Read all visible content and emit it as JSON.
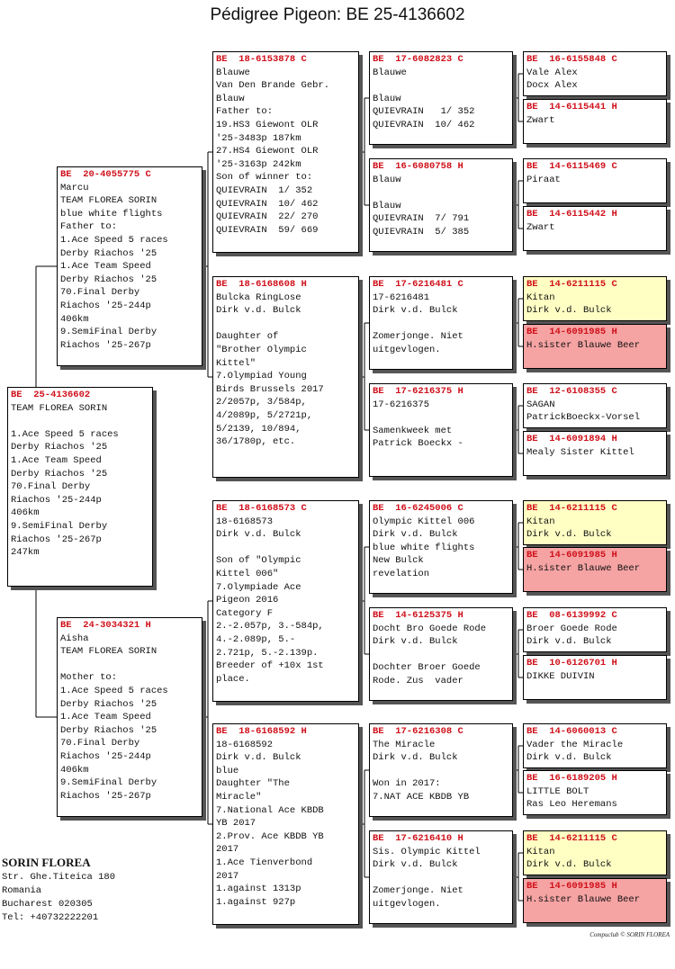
{
  "title": "Pédigree Pigeon: BE  25-4136602",
  "pigeons": [
    {
      "ring": "BE  25-4136602",
      "blocks": [
        [
          "TEAM FLOREA SORIN"
        ],
        [
          "1.Ace Speed 5 races",
          "Derby Riachos '25",
          "1.Ace Team Speed",
          "Derby Riachos '25",
          "70.Final Derby",
          "Riachos '25-244p",
          "406km",
          "9.SemiFinal Derby",
          "Riachos '25-267p",
          "247km"
        ]
      ]
    },
    {
      "ring": "BE  20-4055775 C",
      "blocks": [
        [
          "Marcu",
          "TEAM FLOREA SORIN",
          "blue white flights",
          "Father to:",
          "1.Ace Speed 5 races",
          "Derby Riachos '25",
          "1.Ace Team Speed",
          "Derby Riachos '25",
          "70.Final Derby",
          "Riachos '25-244p",
          "406km",
          "9.SemiFinal Derby",
          "Riachos '25-267p"
        ]
      ]
    },
    {
      "ring": "BE  24-3034321 H",
      "blocks": [
        [
          "Aisha",
          "TEAM FLOREA SORIN"
        ],
        [
          "Mother to:",
          "1.Ace Speed 5 races",
          "Derby Riachos '25",
          "1.Ace Team Speed",
          "Derby Riachos '25",
          "70.Final Derby",
          "Riachos '25-244p",
          "406km",
          "9.SemiFinal Derby",
          "Riachos '25-267p"
        ]
      ]
    },
    {
      "ring": "BE  18-6153878 C",
      "blocks": [
        [
          "Blauwe",
          "Van Den Brande Gebr.",
          "Blauw",
          "Father to:",
          "19.HS3 Giewont OLR",
          "'25-3483p 187km",
          "27.HS4 Giewont OLR",
          "'25-3163p 242km",
          "Son of winner to:",
          "QUIEVRAIN  1/ 352",
          "QUIEVRAIN  10/ 462",
          "QUIEVRAIN  22/ 270",
          "QUIEVRAIN  59/ 669"
        ]
      ]
    },
    {
      "ring": "BE  18-6168608 H",
      "blocks": [
        [
          "Bulcka RingLose",
          "Dirk v.d. Bulck"
        ],
        [
          "Daughter of",
          "\"Brother Olympic",
          "Kittel\"",
          "7.Olympiad Young",
          "Birds Brussels 2017",
          "2/2057p, 3/584p,",
          "4/2089p, 5/2721p,",
          "5/2139, 10/894,",
          "36/1780p, etc."
        ]
      ]
    },
    {
      "ring": "BE  18-6168573 C",
      "blocks": [
        [
          "18-6168573",
          "Dirk v.d. Bulck"
        ],
        [
          "Son of \"Olympic",
          "Kittel 006\"",
          "7.Olympiade Ace",
          "Pigeon 2016",
          "Category F",
          "2.-2.057p, 3.-584p,",
          "4.-2.089p, 5.-",
          "2.721p, 5.-2.139p.",
          "Breeder of +10x 1st",
          "place."
        ]
      ]
    },
    {
      "ring": "BE  18-6168592 H",
      "blocks": [
        [
          "18-6168592",
          "Dirk v.d. Bulck",
          "blue",
          "Daughter \"The",
          "Miracle\"",
          "7.National Ace KBDB",
          "YB 2017",
          "2.Prov. Ace KBDB YB",
          "2017",
          "1.Ace Tienverbond",
          "2017",
          "1.against 1313p",
          "1.against 927p"
        ]
      ]
    },
    {
      "ring": "BE  17-6082823 C",
      "blocks": [
        [
          "Blauwe"
        ],
        [
          "Blauw",
          "QUIEVRAIN   1/ 352",
          "QUIEVRAIN  10/ 462"
        ]
      ]
    },
    {
      "ring": "BE  16-6080758 H",
      "blocks": [
        [
          "Blauw"
        ],
        [
          "Blauw",
          "QUIEVRAIN  7/ 791",
          "QUIEVRAIN  5/ 385"
        ]
      ]
    },
    {
      "ring": "BE  17-6216481 C",
      "blocks": [
        [
          "17-6216481",
          "Dirk v.d. Bulck"
        ],
        [
          "Zomerjonge. Niet",
          "uitgevlogen."
        ]
      ]
    },
    {
      "ring": "BE  17-6216375 H",
      "blocks": [
        [
          "17-6216375"
        ],
        [
          "Samenkweek met",
          "Patrick Boeckx -"
        ]
      ]
    },
    {
      "ring": "BE  16-6245006 C",
      "blocks": [
        [
          "Olympic Kittel 006",
          "Dirk v.d. Bulck",
          "blue white flights",
          "New Bulck",
          "revelation"
        ]
      ]
    },
    {
      "ring": "BE  14-6125375 H",
      "blocks": [
        [
          "Docht Bro Goede Rode",
          "Dirk v.d. Bulck"
        ],
        [
          "Dochter Broer Goede",
          "Rode. Zus  vader"
        ]
      ]
    },
    {
      "ring": "BE  17-6216308 C",
      "blocks": [
        [
          "The Miracle",
          "Dirk v.d. Bulck"
        ],
        [
          "Won in 2017:",
          "7.NAT ACE KBDB YB"
        ]
      ]
    },
    {
      "ring": "BE  17-6216410 H",
      "blocks": [
        [
          "Sis. Olympic Kittel",
          "Dirk v.d. Bulck"
        ],
        [
          "Zomerjonge. Niet",
          "uitgevlogen."
        ]
      ]
    },
    {
      "ring": "BE  16-6155848 C",
      "blocks": [
        [
          "Vale Alex",
          "Docx Alex"
        ]
      ]
    },
    {
      "ring": "BE  14-6115441 H",
      "blocks": [
        [
          "Zwart"
        ]
      ]
    },
    {
      "ring": "BE  14-6115469 C",
      "blocks": [
        [
          "Piraat"
        ]
      ]
    },
    {
      "ring": "BE  14-6115442 H",
      "blocks": [
        [
          "Zwart"
        ]
      ]
    },
    {
      "ring": "BE  14-6211115 C",
      "blocks": [
        [
          "Kitan",
          "Dirk v.d. Bulck"
        ]
      ]
    },
    {
      "ring": "BE  14-6091985 H",
      "blocks": [
        [
          "H.sister Blauwe Beer"
        ]
      ]
    },
    {
      "ring": "BE  12-6108355 C",
      "blocks": [
        [
          "SAGAN",
          "PatrickBoeckx-Vorsel"
        ]
      ]
    },
    {
      "ring": "BE  14-6091894 H",
      "blocks": [
        [
          "Mealy Sister Kittel"
        ]
      ]
    },
    {
      "ring": "BE  14-6211115 C",
      "blocks": [
        [
          "Kitan",
          "Dirk v.d. Bulck"
        ]
      ]
    },
    {
      "ring": "BE  14-6091985 H",
      "blocks": [
        [
          "H.sister Blauwe Beer"
        ]
      ]
    },
    {
      "ring": "BE  08-6139992 C",
      "blocks": [
        [
          "Broer Goede Rode",
          "Dirk v.d. Bulck"
        ]
      ]
    },
    {
      "ring": "BE  10-6126701 H",
      "blocks": [
        [
          "DIKKE DUIVIN"
        ]
      ]
    },
    {
      "ring": "BE  14-6060013 C",
      "blocks": [
        [
          "Vader the Miracle",
          "Dirk v.d. Bulck"
        ]
      ]
    },
    {
      "ring": "BE  16-6189205 H",
      "blocks": [
        [
          "LITTLE BOLT",
          "Ras Leo Heremans"
        ]
      ]
    },
    {
      "ring": "BE  14-6211115 C",
      "blocks": [
        [
          "Kitan",
          "Dirk v.d. Bulck"
        ]
      ]
    },
    {
      "ring": "BE  14-6091985 H",
      "blocks": [
        [
          "H.sister Blauwe Beer"
        ]
      ]
    }
  ],
  "owner": {
    "name": "SORIN FLOREA",
    "address": [
      "Str. Ghe.Titeica 180",
      "Romania",
      "Bucharest 020305",
      "Tel: +40732222201"
    ]
  },
  "footer": "Compuclub © SORIN FLOREA"
}
